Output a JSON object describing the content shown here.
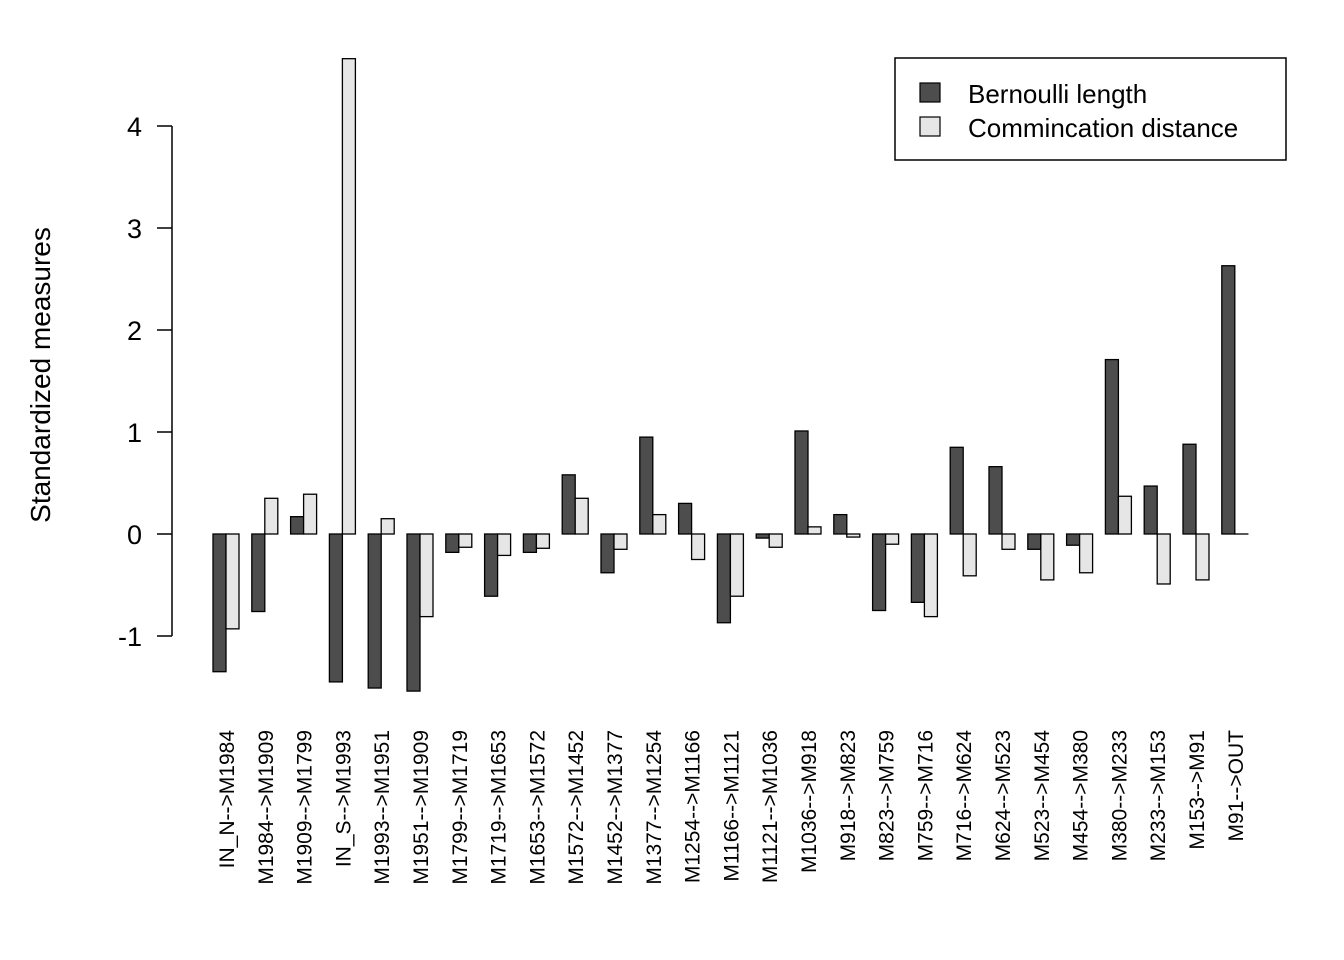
{
  "chart_data": {
    "type": "bar",
    "title": "",
    "xlabel": "",
    "ylabel": "Standardized measures",
    "ylim": [
      -1.6,
      4.7
    ],
    "yticks": [
      -1,
      0,
      1,
      2,
      3,
      4
    ],
    "ytick_labels": [
      "-1",
      "0",
      "1",
      "2",
      "3",
      "4"
    ],
    "grid": false,
    "legend_position": "top-right",
    "categories": [
      "IN_N-->M1984",
      "M1984-->M1909",
      "M1909-->M1799",
      "IN_S-->M1993",
      "M1993-->M1951",
      "M1951-->M1909",
      "M1799-->M1719",
      "M1719-->M1653",
      "M1653-->M1572",
      "M1572-->M1452",
      "M1452-->M1377",
      "M1377-->M1254",
      "M1254-->M1166",
      "M1166-->M1121",
      "M1121-->M1036",
      "M1036-->M918",
      "M918-->M823",
      "M823-->M759",
      "M759-->M716",
      "M716-->M624",
      "M624-->M523",
      "M523-->M454",
      "M454-->M380",
      "M380-->M233",
      "M233-->M153",
      "M153-->M91",
      "M91-->OUT"
    ],
    "series": [
      {
        "name": "Bernoulli length",
        "color": "#4d4d4d",
        "values": [
          -1.35,
          -0.76,
          0.17,
          -1.45,
          -1.51,
          -1.54,
          -0.18,
          -0.61,
          -0.18,
          0.58,
          -0.38,
          0.95,
          0.3,
          -0.87,
          -0.04,
          1.01,
          0.19,
          -0.75,
          -0.67,
          0.85,
          0.66,
          -0.15,
          -0.11,
          1.71,
          0.47,
          0.88,
          2.63
        ]
      },
      {
        "name": "Commincation distance",
        "color": "#e6e6e6",
        "values": [
          -0.93,
          0.35,
          0.39,
          4.66,
          0.15,
          -0.81,
          -0.13,
          -0.21,
          -0.14,
          0.35,
          -0.15,
          0.19,
          -0.25,
          -0.61,
          -0.13,
          0.07,
          -0.03,
          -0.1,
          -0.81,
          -0.41,
          -0.15,
          -0.45,
          -0.38,
          0.37,
          -0.49,
          -0.45,
          0.0
        ]
      }
    ]
  }
}
